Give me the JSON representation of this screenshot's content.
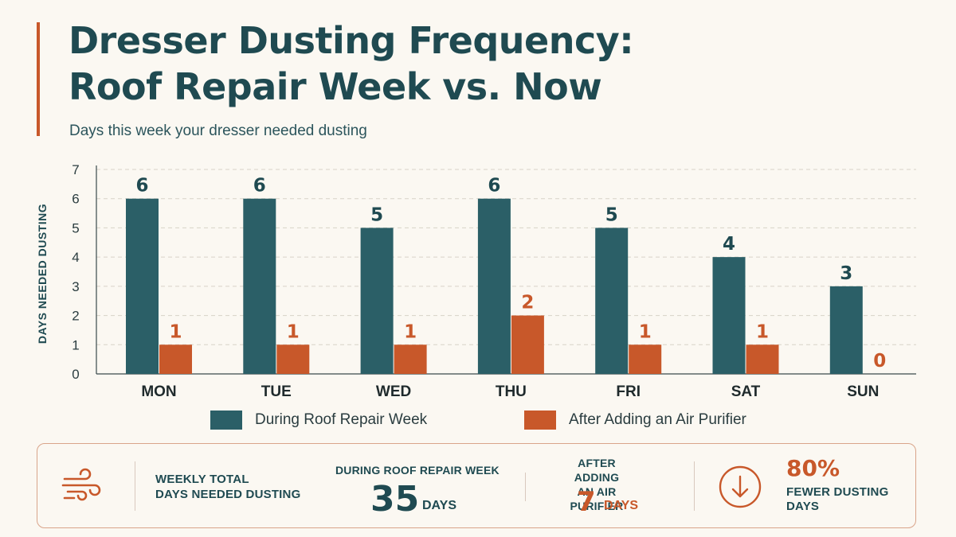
{
  "header": {
    "title_line1": "Dresser Dusting Frequency:",
    "title_line2": "Roof Repair Week vs. Now",
    "subtitle": "Days this week your dresser needed dusting"
  },
  "colors": {
    "teal": "#2b5f67",
    "orange": "#c8582a",
    "title": "#1f4a51",
    "background": "#fbf8f2"
  },
  "chart_data": {
    "type": "bar",
    "title": "Dresser Dusting Frequency: Roof Repair Week vs. Now",
    "subtitle": "Days this week your dresser needed dusting",
    "xlabel": "",
    "ylabel": "DAYS NEEDED DUSTING",
    "ylim": [
      0,
      7
    ],
    "yticks": [
      "0",
      "1",
      "2",
      "3",
      "4",
      "5",
      "6",
      "7"
    ],
    "grid": true,
    "legend_position": "bottom",
    "categories": [
      "MON",
      "TUE",
      "WED",
      "THU",
      "FRI",
      "SAT",
      "SUN"
    ],
    "series": [
      {
        "name": "During Roof Repair Week",
        "color": "#2b5f67",
        "values": [
          6,
          6,
          5,
          6,
          5,
          4,
          3
        ]
      },
      {
        "name": "After Adding an Air Purifier",
        "color": "#c8582a",
        "values": [
          1,
          1,
          1,
          2,
          1,
          1,
          0
        ]
      }
    ]
  },
  "summary": {
    "icon": "wind-icon",
    "label_line1": "WEEKLY TOTAL",
    "label_line2": "DAYS NEEDED DUSTING",
    "before_label": "DURING ROOF REPAIR WEEK",
    "before_value": "35",
    "before_unit": "DAYS",
    "after_label_line1": "AFTER ADDING",
    "after_label_line2": "AN AIR PURIFIER",
    "after_value": "7",
    "after_unit": "DAYS",
    "reduction_icon": "arrow-down-circle-icon",
    "reduction_value": "80%",
    "reduction_label_line1": "FEWER DUSTING",
    "reduction_label_line2": "DAYS"
  }
}
